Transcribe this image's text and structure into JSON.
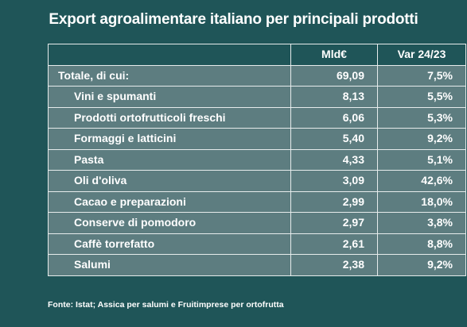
{
  "title": "Export agroalimentare italiano per principali prodotti",
  "columns": [
    "",
    "Mld€",
    "Var 24/23"
  ],
  "source": "Fonte: Istat; Assica per salumi e Fruitimprese per ortofrutta",
  "chart_data": {
    "type": "table",
    "title": "Export agroalimentare italiano per principali prodotti",
    "columns": [
      "",
      "Mld€",
      "Var 24/23"
    ],
    "rows": [
      {
        "label": "Totale, di cui:",
        "value": "69,09",
        "change": "7,5%"
      },
      {
        "label": "Vini e spumanti",
        "value": "8,13",
        "change": "5,5%"
      },
      {
        "label": "Prodotti ortofrutticoli freschi",
        "value": "6,06",
        "change": "5,3%"
      },
      {
        "label": "Formaggi e latticini",
        "value": "5,40",
        "change": "9,2%"
      },
      {
        "label": "Pasta",
        "value": "4,33",
        "change": "5,1%"
      },
      {
        "label": "Oli d'oliva",
        "value": "3,09",
        "change": "42,6%"
      },
      {
        "label": "Cacao e preparazioni",
        "value": "2,99",
        "change": "18,0%"
      },
      {
        "label": "Conserve di pomodoro",
        "value": "2,97",
        "change": "3,8%"
      },
      {
        "label": "Caffè torrefatto",
        "value": "2,61",
        "change": "8,8%"
      },
      {
        "label": "Salumi",
        "value": "2,38",
        "change": "9,2%"
      }
    ]
  }
}
